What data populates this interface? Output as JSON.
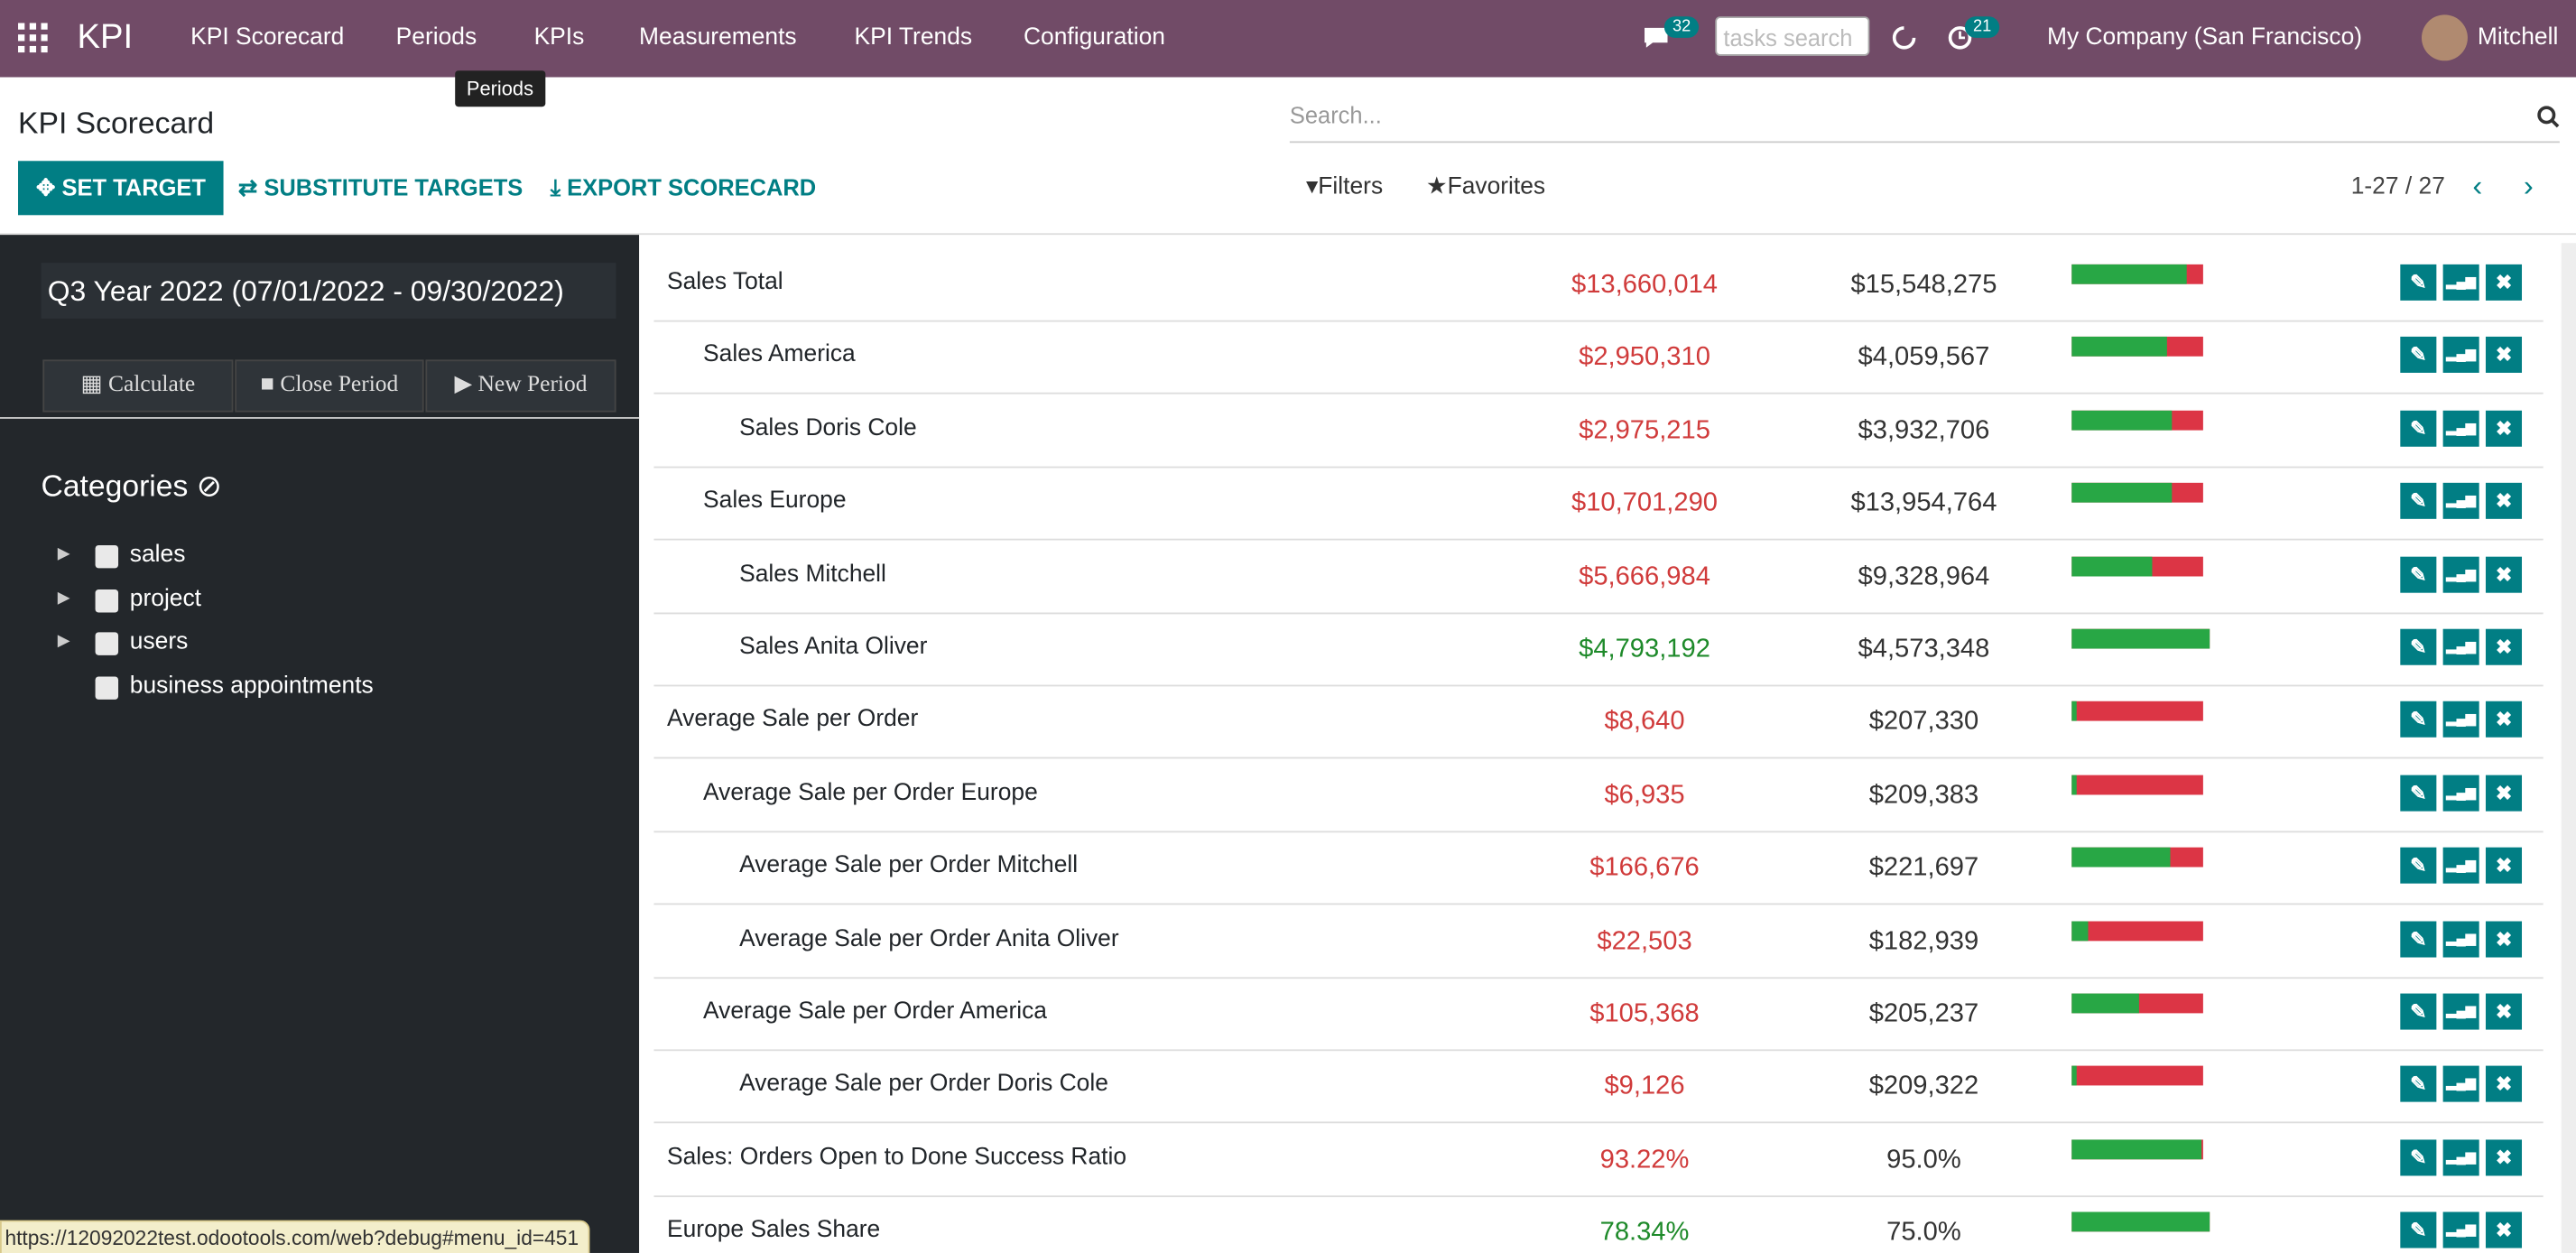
{
  "navbar": {
    "brand": "KPI",
    "menu": [
      "KPI Scorecard",
      "Periods",
      "KPIs",
      "Measurements",
      "KPI Trends",
      "Configuration"
    ],
    "messages_badge": "32",
    "tasks_search_placeholder": "tasks search",
    "activities_badge": "21",
    "company": "My Company (San Francisco)",
    "user": "Mitchell",
    "tooltip": "Periods"
  },
  "control_panel": {
    "title": "KPI Scorecard",
    "buttons": [
      "SET TARGET",
      "SUBSTITUTE TARGETS",
      "EXPORT SCORECARD"
    ],
    "search_placeholder": "Search...",
    "filters": "Filters",
    "favorites": "Favorites",
    "pager": "1-27 / 27"
  },
  "sidebar": {
    "period": "Q3 Year 2022 (07/01/2022 - 09/30/2022)",
    "buttons": [
      "Calculate",
      "Close Period",
      "New Period"
    ],
    "categories_title": "Categories",
    "categories": [
      "sales",
      "project",
      "users",
      "business appointments"
    ]
  },
  "table": {
    "rows": [
      [
        "Sales Total",
        "$13,660,014",
        "$15,548,275"
      ],
      [
        "Sales America",
        "$2,950,310",
        "$4,059,567"
      ],
      [
        "Sales Doris Cole",
        "$2,975,215",
        "$3,932,706"
      ],
      [
        "Sales Europe",
        "$10,701,290",
        "$13,954,764"
      ],
      [
        "Sales Mitchell",
        "$5,666,984",
        "$9,328,964"
      ],
      [
        "Sales Anita Oliver",
        "$4,793,192",
        "$4,573,348"
      ],
      [
        "Average Sale per Order",
        "$8,640",
        "$207,330"
      ],
      [
        "Average Sale per Order Europe",
        "$6,935",
        "$209,383"
      ],
      [
        "Average Sale per Order Mitchell",
        "$166,676",
        "$221,697"
      ],
      [
        "Average Sale per Order Anita Oliver",
        "$22,503",
        "$182,939"
      ],
      [
        "Average Sale per Order America",
        "$105,368",
        "$205,237"
      ],
      [
        "Average Sale per Order Doris Cole",
        "$9,126",
        "$209,322"
      ],
      [
        "Sales: Orders Open to Done Success Ratio",
        "93.22%",
        "95.0%"
      ],
      [
        "Europe Sales Share",
        "78.34%",
        "75.0%"
      ]
    ]
  },
  "status_url": "https://12092022test.odootools.com/web?debug#menu_id=451"
}
